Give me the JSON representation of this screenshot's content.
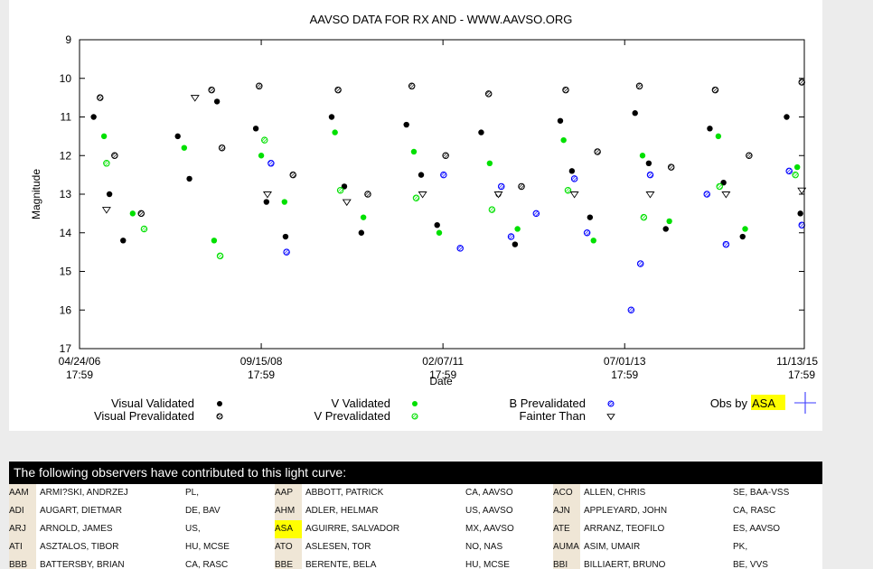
{
  "chart_data": {
    "type": "scatter",
    "title": "AAVSO DATA FOR RX AND - WWW.AAVSO.ORG",
    "xlabel": "Date",
    "ylabel": "Magnitude",
    "ylim": [
      9,
      17
    ],
    "y_inverted": true,
    "y_ticks": [
      "9",
      "10",
      "11",
      "12",
      "13",
      "14",
      "15",
      "16",
      "17"
    ],
    "x_ticks": [
      {
        "date": "04/24/06",
        "time": "17:59"
      },
      {
        "date": "09/15/08",
        "time": "17:59"
      },
      {
        "date": "02/07/11",
        "time": "17:59"
      },
      {
        "date": "07/01/13",
        "time": "17:59"
      },
      {
        "date": "11/13/15",
        "time": "17:59"
      }
    ],
    "xlim": [
      "04/24/06",
      "11/13/15"
    ],
    "grid": false,
    "legend_placement": "bottom",
    "legend": [
      {
        "name": "Visual Validated",
        "marker": "filled-circle",
        "color": "#000000"
      },
      {
        "name": "Visual Prevalidated",
        "marker": "hatched-circle",
        "color": "#000000"
      },
      {
        "name": "V Validated",
        "marker": "filled-circle",
        "color": "#00e000"
      },
      {
        "name": "V Prevalidated",
        "marker": "hatched-circle",
        "color": "#00e000"
      },
      {
        "name": "B Prevalidated",
        "marker": "hatched-circle",
        "color": "#0000ff"
      },
      {
        "name": "Fainter Than",
        "marker": "open-triangle-down",
        "color": "#000000"
      }
    ],
    "obs_by": {
      "prefix": "Obs by",
      "observer": "ASA",
      "marker": "plus",
      "color": "#3a3aff"
    },
    "series": [
      {
        "name": "Visual Validated",
        "color": "#000000",
        "x": [
          "2006-07-01",
          "2006-09-15",
          "2006-11-20",
          "2007-08-10",
          "2007-10-05",
          "2008-02-15",
          "2008-08-20",
          "2008-10-10",
          "2009-01-10",
          "2009-08-20",
          "2009-10-20",
          "2010-01-10",
          "2010-08-15",
          "2010-10-25",
          "2011-01-10",
          "2011-08-10",
          "2011-11-01",
          "2012-01-20",
          "2012-08-25",
          "2012-10-20",
          "2013-01-15",
          "2013-08-20",
          "2013-10-25",
          "2014-01-15",
          "2014-08-15",
          "2014-10-20",
          "2015-01-20",
          "2015-08-20",
          "2015-10-25"
        ],
        "y": [
          11.0,
          13.0,
          14.2,
          11.5,
          12.6,
          10.6,
          11.3,
          13.2,
          14.1,
          11.0,
          12.8,
          14.0,
          11.2,
          12.5,
          13.8,
          11.4,
          13.0,
          14.3,
          11.1,
          12.4,
          13.6,
          10.9,
          12.2,
          13.9,
          11.3,
          12.7,
          14.1,
          11.0,
          13.5
        ]
      },
      {
        "name": "Visual Prevalidated",
        "color": "#000000",
        "x": [
          "2006-08-01",
          "2006-10-10",
          "2007-02-15",
          "2008-01-20",
          "2008-03-10",
          "2008-09-05",
          "2009-02-15",
          "2009-09-20",
          "2010-02-10",
          "2010-09-10",
          "2011-02-20",
          "2011-09-15",
          "2012-02-20",
          "2012-09-20",
          "2013-02-20",
          "2013-09-10",
          "2014-02-10",
          "2014-09-10",
          "2015-02-20",
          "2015-11-01"
        ],
        "y": [
          10.5,
          12.0,
          13.5,
          10.3,
          11.8,
          10.2,
          12.5,
          10.3,
          13.0,
          10.2,
          12.0,
          10.4,
          12.8,
          10.3,
          11.9,
          10.2,
          12.3,
          10.3,
          12.0,
          10.1
        ]
      },
      {
        "name": "V Validated",
        "color": "#00e000",
        "x": [
          "2006-08-20",
          "2007-01-05",
          "2007-09-10",
          "2008-02-01",
          "2008-09-15",
          "2009-01-05",
          "2009-09-05",
          "2010-01-20",
          "2010-09-20",
          "2011-01-20",
          "2011-09-20",
          "2012-02-01",
          "2012-09-10",
          "2013-02-01",
          "2013-09-25",
          "2014-02-01",
          "2014-09-25",
          "2015-02-01",
          "2015-10-10"
        ],
        "y": [
          11.5,
          13.5,
          11.8,
          14.2,
          12.0,
          13.2,
          11.4,
          13.6,
          11.9,
          14.0,
          12.2,
          13.9,
          11.6,
          14.2,
          12.0,
          13.7,
          11.5,
          13.9,
          12.3
        ]
      },
      {
        "name": "V Prevalidated",
        "color": "#00e000",
        "x": [
          "2006-09-01",
          "2007-03-01",
          "2008-03-01",
          "2008-10-01",
          "2009-10-01",
          "2010-10-01",
          "2011-10-01",
          "2012-10-01",
          "2013-10-01",
          "2014-10-01",
          "2015-10-01"
        ],
        "y": [
          12.2,
          13.9,
          14.6,
          11.6,
          12.9,
          13.1,
          13.4,
          12.9,
          13.6,
          12.8,
          12.5
        ]
      },
      {
        "name": "B Prevalidated",
        "color": "#0000ff",
        "x": [
          "2008-11-01",
          "2009-01-15",
          "2011-02-10",
          "2011-05-01",
          "2011-11-15",
          "2012-01-01",
          "2012-05-01",
          "2012-11-01",
          "2013-01-01",
          "2013-08-01",
          "2013-09-15",
          "2013-11-01",
          "2014-08-01",
          "2014-11-01",
          "2015-09-01",
          "2015-11-01"
        ],
        "y": [
          12.2,
          14.5,
          12.5,
          14.4,
          12.8,
          14.1,
          13.5,
          12.6,
          14.0,
          16.0,
          14.8,
          12.5,
          13.0,
          14.3,
          12.4,
          13.8
        ]
      },
      {
        "name": "Fainter Than",
        "color": "#000000",
        "x": [
          "2006-09-01",
          "2007-11-01",
          "2008-10-15",
          "2009-11-01",
          "2010-11-01",
          "2011-11-01",
          "2012-11-01",
          "2013-11-01",
          "2014-11-01",
          "2015-11-01"
        ],
        "y": [
          13.4,
          10.5,
          13.0,
          13.2,
          13.0,
          13.0,
          13.0,
          13.0,
          13.0,
          12.9
        ]
      }
    ]
  },
  "observers": {
    "heading": "The following observers have contributed to this light curve:",
    "rows": [
      [
        {
          "code": "AAM",
          "name": "ARMI?SKI, ANDRZEJ",
          "affil": "PL,"
        },
        {
          "code": "AAP",
          "name": "ABBOTT, PATRICK",
          "affil": "CA, AAVSO"
        },
        {
          "code": "ACO",
          "name": "ALLEN, CHRIS",
          "affil": "SE, BAA-VSS"
        }
      ],
      [
        {
          "code": "ADI",
          "name": "AUGART, DIETMAR",
          "affil": "DE, BAV"
        },
        {
          "code": "AHM",
          "name": "ADLER, HELMAR",
          "affil": "US, AAVSO"
        },
        {
          "code": "AJN",
          "name": "APPLEYARD, JOHN",
          "affil": "CA, RASC"
        }
      ],
      [
        {
          "code": "ARJ",
          "name": "ARNOLD, JAMES",
          "affil": "US,"
        },
        {
          "code": "ASA",
          "name": "AGUIRRE, SALVADOR",
          "affil": "MX, AAVSO"
        },
        {
          "code": "ATE",
          "name": "ARRANZ, TEOFILO",
          "affil": "ES, AAVSO"
        }
      ],
      [
        {
          "code": "ATI",
          "name": "ASZTALOS, TIBOR",
          "affil": "HU, MCSE"
        },
        {
          "code": "ATO",
          "name": "ASLESEN, TOR",
          "affil": "NO, NAS"
        },
        {
          "code": "AUMA",
          "name": "ASIM, UMAIR",
          "affil": "PK,"
        }
      ],
      [
        {
          "code": "BBB",
          "name": "BATTERSBY, BRIAN",
          "affil": "CA, RASC"
        },
        {
          "code": "BBE",
          "name": "BERENTE, BELA",
          "affil": "HU, MCSE"
        },
        {
          "code": "BBI",
          "name": "BILLIAERT, BRUNO",
          "affil": "BE, VVS"
        }
      ]
    ],
    "highlight_code": "ASA"
  }
}
